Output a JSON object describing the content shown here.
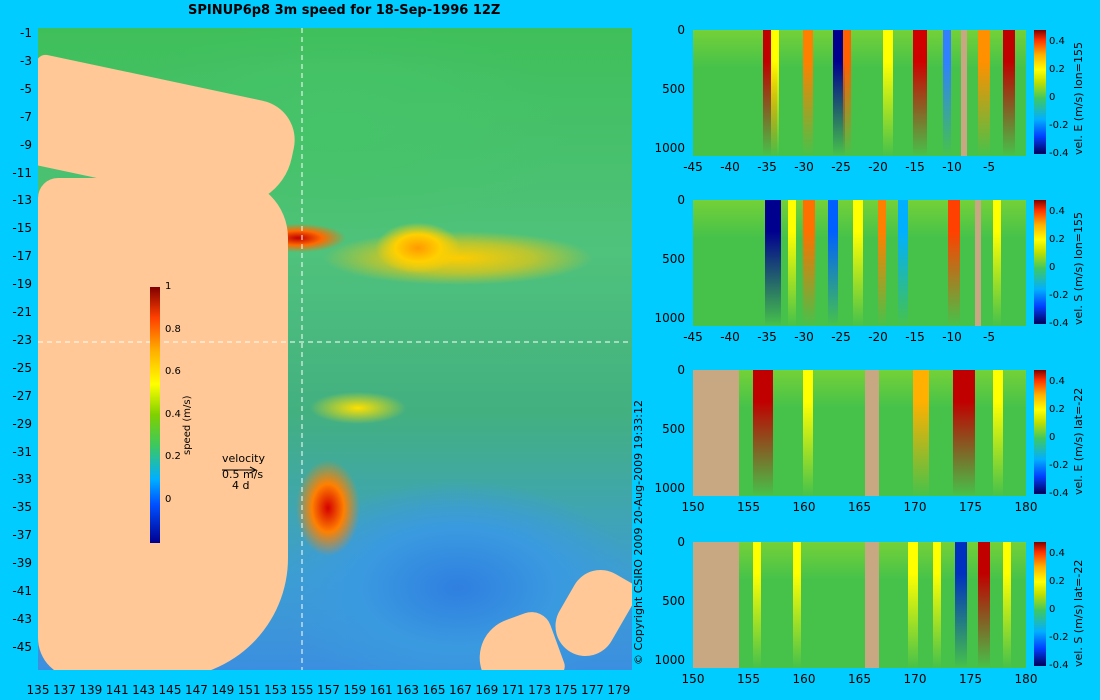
{
  "title": "SPINUP6p8 3m speed for 18-Sep-1996 12Z",
  "copyright": "© Copyright CSIRO 2009  20-Aug-2009 19:33:12",
  "map": {
    "y_ticks": [
      "-1",
      "-3",
      "-5",
      "-7",
      "-9",
      "-11",
      "-13",
      "-15",
      "-17",
      "-19",
      "-21",
      "-23",
      "-25",
      "-27",
      "-29",
      "-31",
      "-33",
      "-35",
      "-37",
      "-39",
      "-41",
      "-43",
      "-45"
    ],
    "x_ticks": [
      "135",
      "137",
      "139",
      "141",
      "143",
      "145",
      "147",
      "149",
      "151",
      "153",
      "155",
      "157",
      "159",
      "161",
      "163",
      "165",
      "167",
      "169",
      "171",
      "173",
      "175",
      "177",
      "179"
    ],
    "colorbar": {
      "label": "speed (m/s)",
      "ticks": [
        "1",
        "0.8",
        "0.6",
        "0.4",
        "0.2",
        "0"
      ]
    },
    "velocity_key": {
      "title": "velocity",
      "speed": "0.5 m/s",
      "duration": "4 d"
    }
  },
  "panels": [
    {
      "side_label": "vel. E (m/s) lon=155",
      "y_ticks": [
        "0",
        "500",
        "1000"
      ],
      "x_ticks": [
        "-45",
        "-40",
        "-35",
        "-30",
        "-25",
        "-20",
        "-15",
        "-10",
        "-5"
      ],
      "cbar_ticks": [
        "0.4",
        "0.2",
        "0",
        "-0.2",
        "-0.4"
      ]
    },
    {
      "side_label": "vel. S (m/s) lon=155",
      "y_ticks": [
        "0",
        "500",
        "1000"
      ],
      "x_ticks": [
        "-45",
        "-40",
        "-35",
        "-30",
        "-25",
        "-20",
        "-15",
        "-10",
        "-5"
      ],
      "cbar_ticks": [
        "0.4",
        "0.2",
        "0",
        "-0.2",
        "-0.4"
      ]
    },
    {
      "side_label": "vel. E (m/s) lat=-22",
      "y_ticks": [
        "0",
        "500",
        "1000"
      ],
      "x_ticks": [
        "150",
        "155",
        "160",
        "165",
        "170",
        "175",
        "180"
      ],
      "cbar_ticks": [
        "0.4",
        "0.2",
        "0",
        "-0.2",
        "-0.4"
      ]
    },
    {
      "side_label": "vel. S (m/s) lat=-22",
      "y_ticks": [
        "0",
        "500",
        "1000"
      ],
      "x_ticks": [
        "150",
        "155",
        "160",
        "165",
        "170",
        "175",
        "180"
      ],
      "cbar_ticks": [
        "0.4",
        "0.2",
        "0",
        "-0.2",
        "-0.4"
      ]
    }
  ],
  "chart_data": [
    {
      "type": "heatmap",
      "title": "SPINUP6p8 3m speed for 18-Sep-1996 12Z",
      "xlabel": "",
      "ylabel": "",
      "xlim": [
        135,
        180
      ],
      "ylim": [
        -45,
        0
      ],
      "colorbar_label": "speed (m/s)",
      "colorbar_range": [
        -0.2,
        1
      ]
    },
    {
      "type": "heatmap",
      "colorbar_label": "vel. E (m/s) lon=155",
      "xlim": [
        -45,
        0
      ],
      "ylim": [
        1050,
        0
      ],
      "colorbar_range": [
        -0.4,
        0.45
      ]
    },
    {
      "type": "heatmap",
      "colorbar_label": "vel. S (m/s) lon=155",
      "xlim": [
        -45,
        0
      ],
      "ylim": [
        1050,
        0
      ],
      "colorbar_range": [
        -0.4,
        0.45
      ]
    },
    {
      "type": "heatmap",
      "colorbar_label": "vel. E (m/s) lat=-22",
      "xlim": [
        150,
        180
      ],
      "ylim": [
        1050,
        0
      ],
      "colorbar_range": [
        -0.4,
        0.45
      ]
    },
    {
      "type": "heatmap",
      "colorbar_label": "vel. S (m/s) lat=-22",
      "xlim": [
        150,
        180
      ],
      "ylim": [
        1050,
        0
      ],
      "colorbar_range": [
        -0.4,
        0.45
      ]
    }
  ]
}
